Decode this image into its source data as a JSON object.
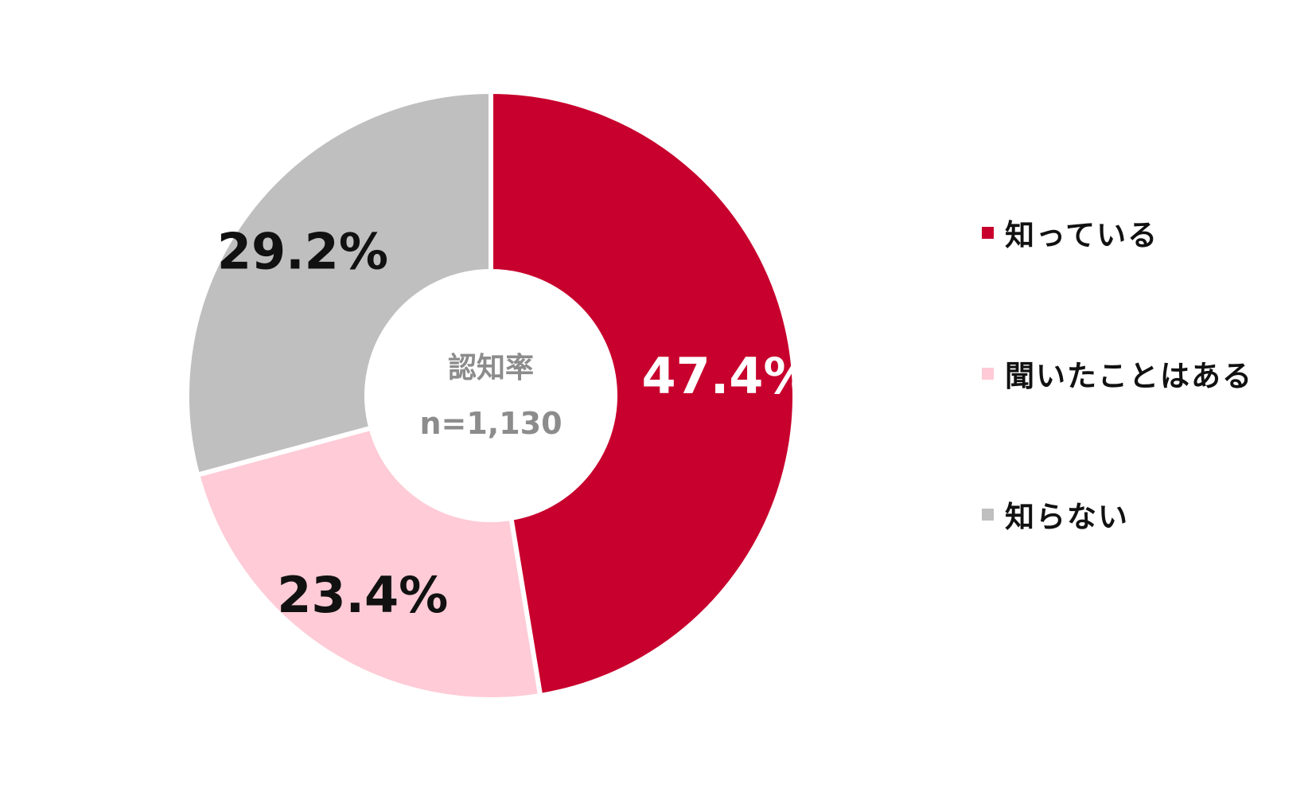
{
  "chart_data": {
    "type": "pie",
    "title": "",
    "center_label": "認知率",
    "center_sublabel": "n=1,130",
    "legend_position": "right",
    "slices": [
      {
        "label": "知っている",
        "value": 47.4,
        "display": "47.4%",
        "color": "#c8002d",
        "text_color": "#ffffff"
      },
      {
        "label": "聞いたことはある",
        "value": 23.4,
        "display": "23.4%",
        "color": "#fecbd6",
        "text_color": "#111111"
      },
      {
        "label": "知らない",
        "value": 29.2,
        "display": "29.2%",
        "color": "#bfbfbf",
        "text_color": "#111111"
      }
    ]
  }
}
